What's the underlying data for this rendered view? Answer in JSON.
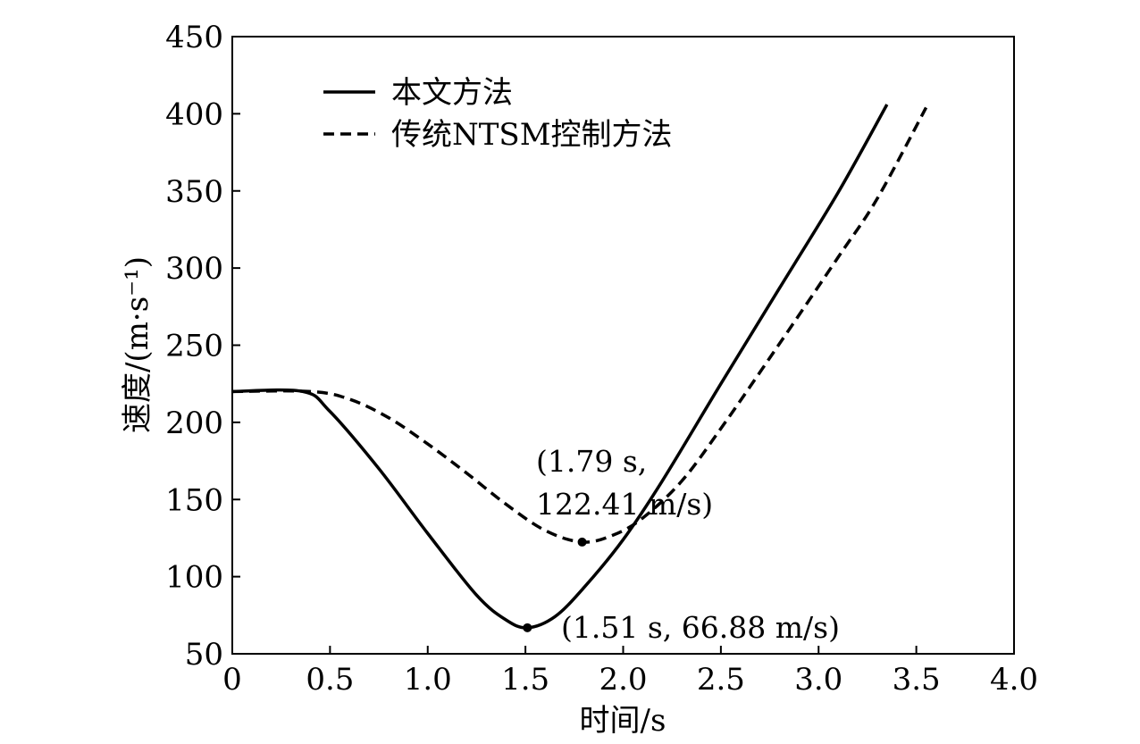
{
  "chart_data": {
    "type": "line",
    "xlabel": "时间/s",
    "ylabel": "速度/(m·s⁻¹)",
    "xlim": [
      0,
      4.0
    ],
    "ylim": [
      50,
      450
    ],
    "x_ticks": [
      0,
      0.5,
      1.0,
      1.5,
      2.0,
      2.5,
      3.0,
      3.5,
      4.0
    ],
    "x_tick_labels": [
      "0",
      "0.5",
      "1.0",
      "1.5",
      "2.0",
      "2.5",
      "3.0",
      "3.5",
      "4.0"
    ],
    "y_ticks": [
      50,
      100,
      150,
      200,
      250,
      300,
      350,
      400,
      450
    ],
    "y_tick_labels": [
      "50",
      "100",
      "150",
      "200",
      "250",
      "300",
      "350",
      "400",
      "450"
    ],
    "grid": false,
    "legend_position": "top-left",
    "series": [
      {
        "name": "本文方法",
        "style": "solid",
        "color": "#000000",
        "x": [
          0,
          0.36,
          0.5,
          0.75,
          1.0,
          1.25,
          1.4,
          1.51,
          1.65,
          1.8,
          2.0,
          2.2,
          2.5,
          2.8,
          3.1,
          3.35
        ],
        "y": [
          220,
          220,
          207,
          170,
          128,
          88,
          72,
          66.88,
          74,
          93,
          124,
          162,
          225,
          287,
          349,
          406
        ]
      },
      {
        "name": "传统NTSM控制方法",
        "style": "dashed",
        "color": "#000000",
        "x": [
          0,
          0.4,
          0.6,
          0.8,
          1.0,
          1.2,
          1.4,
          1.6,
          1.79,
          1.95,
          2.1,
          2.3,
          2.5,
          2.8,
          3.1,
          3.3,
          3.55
        ],
        "y": [
          220,
          220,
          215,
          203,
          186,
          167,
          147,
          130,
          122.41,
          127,
          138,
          162,
          196,
          251,
          307,
          345,
          404
        ]
      }
    ],
    "annotations": [
      {
        "x": 1.79,
        "y": 122.41,
        "lines": [
          "(1.79 s,",
          "122.41 m/s)"
        ]
      },
      {
        "x": 1.51,
        "y": 66.88,
        "lines": [
          "(1.51 s, 66.88 m/s)"
        ]
      }
    ]
  }
}
